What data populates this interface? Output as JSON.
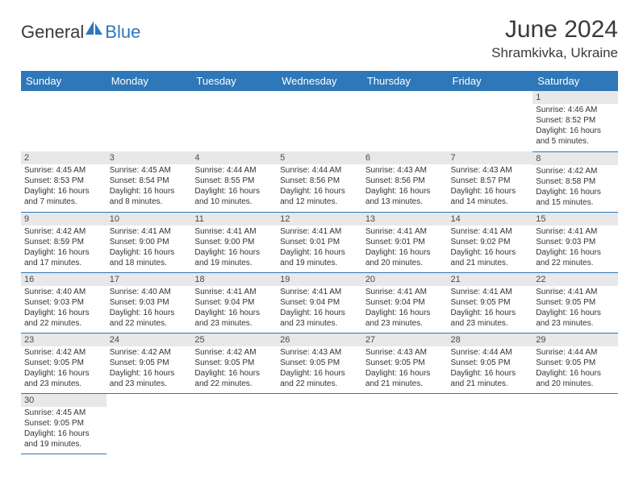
{
  "logo": {
    "text1": "General",
    "text2": "Blue"
  },
  "title": "June 2024",
  "location": "Shramkivka, Ukraine",
  "colors": {
    "header_bg": "#2e77b8",
    "header_fg": "#ffffff",
    "daynum_bg": "#e8e8e8",
    "border": "#2e77b8",
    "text": "#333333"
  },
  "typography": {
    "title_fontsize": 30,
    "location_fontsize": 17,
    "header_fontsize": 13,
    "cell_fontsize": 10
  },
  "weekdays": [
    "Sunday",
    "Monday",
    "Tuesday",
    "Wednesday",
    "Thursday",
    "Friday",
    "Saturday"
  ],
  "weeks": [
    [
      null,
      null,
      null,
      null,
      null,
      null,
      {
        "n": "1",
        "sr": "4:46 AM",
        "ss": "8:52 PM",
        "dl": "16 hours and 5 minutes."
      }
    ],
    [
      {
        "n": "2",
        "sr": "4:45 AM",
        "ss": "8:53 PM",
        "dl": "16 hours and 7 minutes."
      },
      {
        "n": "3",
        "sr": "4:45 AM",
        "ss": "8:54 PM",
        "dl": "16 hours and 8 minutes."
      },
      {
        "n": "4",
        "sr": "4:44 AM",
        "ss": "8:55 PM",
        "dl": "16 hours and 10 minutes."
      },
      {
        "n": "5",
        "sr": "4:44 AM",
        "ss": "8:56 PM",
        "dl": "16 hours and 12 minutes."
      },
      {
        "n": "6",
        "sr": "4:43 AM",
        "ss": "8:56 PM",
        "dl": "16 hours and 13 minutes."
      },
      {
        "n": "7",
        "sr": "4:43 AM",
        "ss": "8:57 PM",
        "dl": "16 hours and 14 minutes."
      },
      {
        "n": "8",
        "sr": "4:42 AM",
        "ss": "8:58 PM",
        "dl": "16 hours and 15 minutes."
      }
    ],
    [
      {
        "n": "9",
        "sr": "4:42 AM",
        "ss": "8:59 PM",
        "dl": "16 hours and 17 minutes."
      },
      {
        "n": "10",
        "sr": "4:41 AM",
        "ss": "9:00 PM",
        "dl": "16 hours and 18 minutes."
      },
      {
        "n": "11",
        "sr": "4:41 AM",
        "ss": "9:00 PM",
        "dl": "16 hours and 19 minutes."
      },
      {
        "n": "12",
        "sr": "4:41 AM",
        "ss": "9:01 PM",
        "dl": "16 hours and 19 minutes."
      },
      {
        "n": "13",
        "sr": "4:41 AM",
        "ss": "9:01 PM",
        "dl": "16 hours and 20 minutes."
      },
      {
        "n": "14",
        "sr": "4:41 AM",
        "ss": "9:02 PM",
        "dl": "16 hours and 21 minutes."
      },
      {
        "n": "15",
        "sr": "4:41 AM",
        "ss": "9:03 PM",
        "dl": "16 hours and 22 minutes."
      }
    ],
    [
      {
        "n": "16",
        "sr": "4:40 AM",
        "ss": "9:03 PM",
        "dl": "16 hours and 22 minutes."
      },
      {
        "n": "17",
        "sr": "4:40 AM",
        "ss": "9:03 PM",
        "dl": "16 hours and 22 minutes."
      },
      {
        "n": "18",
        "sr": "4:41 AM",
        "ss": "9:04 PM",
        "dl": "16 hours and 23 minutes."
      },
      {
        "n": "19",
        "sr": "4:41 AM",
        "ss": "9:04 PM",
        "dl": "16 hours and 23 minutes."
      },
      {
        "n": "20",
        "sr": "4:41 AM",
        "ss": "9:04 PM",
        "dl": "16 hours and 23 minutes."
      },
      {
        "n": "21",
        "sr": "4:41 AM",
        "ss": "9:05 PM",
        "dl": "16 hours and 23 minutes."
      },
      {
        "n": "22",
        "sr": "4:41 AM",
        "ss": "9:05 PM",
        "dl": "16 hours and 23 minutes."
      }
    ],
    [
      {
        "n": "23",
        "sr": "4:42 AM",
        "ss": "9:05 PM",
        "dl": "16 hours and 23 minutes."
      },
      {
        "n": "24",
        "sr": "4:42 AM",
        "ss": "9:05 PM",
        "dl": "16 hours and 23 minutes."
      },
      {
        "n": "25",
        "sr": "4:42 AM",
        "ss": "9:05 PM",
        "dl": "16 hours and 22 minutes."
      },
      {
        "n": "26",
        "sr": "4:43 AM",
        "ss": "9:05 PM",
        "dl": "16 hours and 22 minutes."
      },
      {
        "n": "27",
        "sr": "4:43 AM",
        "ss": "9:05 PM",
        "dl": "16 hours and 21 minutes."
      },
      {
        "n": "28",
        "sr": "4:44 AM",
        "ss": "9:05 PM",
        "dl": "16 hours and 21 minutes."
      },
      {
        "n": "29",
        "sr": "4:44 AM",
        "ss": "9:05 PM",
        "dl": "16 hours and 20 minutes."
      }
    ],
    [
      {
        "n": "30",
        "sr": "4:45 AM",
        "ss": "9:05 PM",
        "dl": "16 hours and 19 minutes."
      },
      null,
      null,
      null,
      null,
      null,
      null
    ]
  ],
  "labels": {
    "sunrise": "Sunrise: ",
    "sunset": "Sunset: ",
    "daylight": "Daylight: "
  }
}
